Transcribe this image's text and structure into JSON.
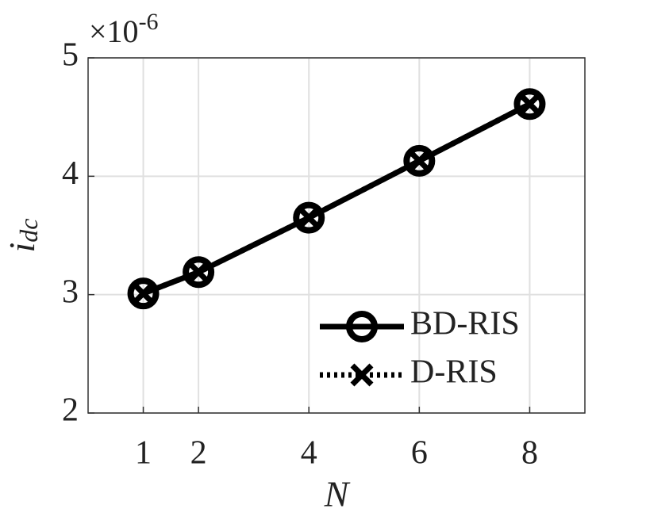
{
  "chart_data": {
    "type": "line",
    "xlabel": "N",
    "ylabel": "i",
    "ylabel_subscript": "dc",
    "y_multiplier": "×10",
    "y_multiplier_exponent": "-6",
    "x": [
      1,
      2,
      4,
      6,
      8
    ],
    "series": [
      {
        "name": "BD-RIS",
        "color": "#000000",
        "line_style": "solid",
        "marker": "circle",
        "values": [
          3.01,
          3.19,
          3.65,
          4.13,
          4.61
        ]
      },
      {
        "name": "D-RIS",
        "color": "#000000",
        "line_style": "dotted",
        "marker": "x",
        "values": [
          3.01,
          3.19,
          3.65,
          4.13,
          4.61
        ]
      }
    ],
    "xlim": [
      0,
      9
    ],
    "xticks": [
      1,
      2,
      4,
      6,
      8
    ],
    "ylim": [
      2,
      5
    ],
    "yticks": [
      2,
      3,
      4,
      5
    ],
    "grid": true,
    "legend_position": "lower-right"
  }
}
